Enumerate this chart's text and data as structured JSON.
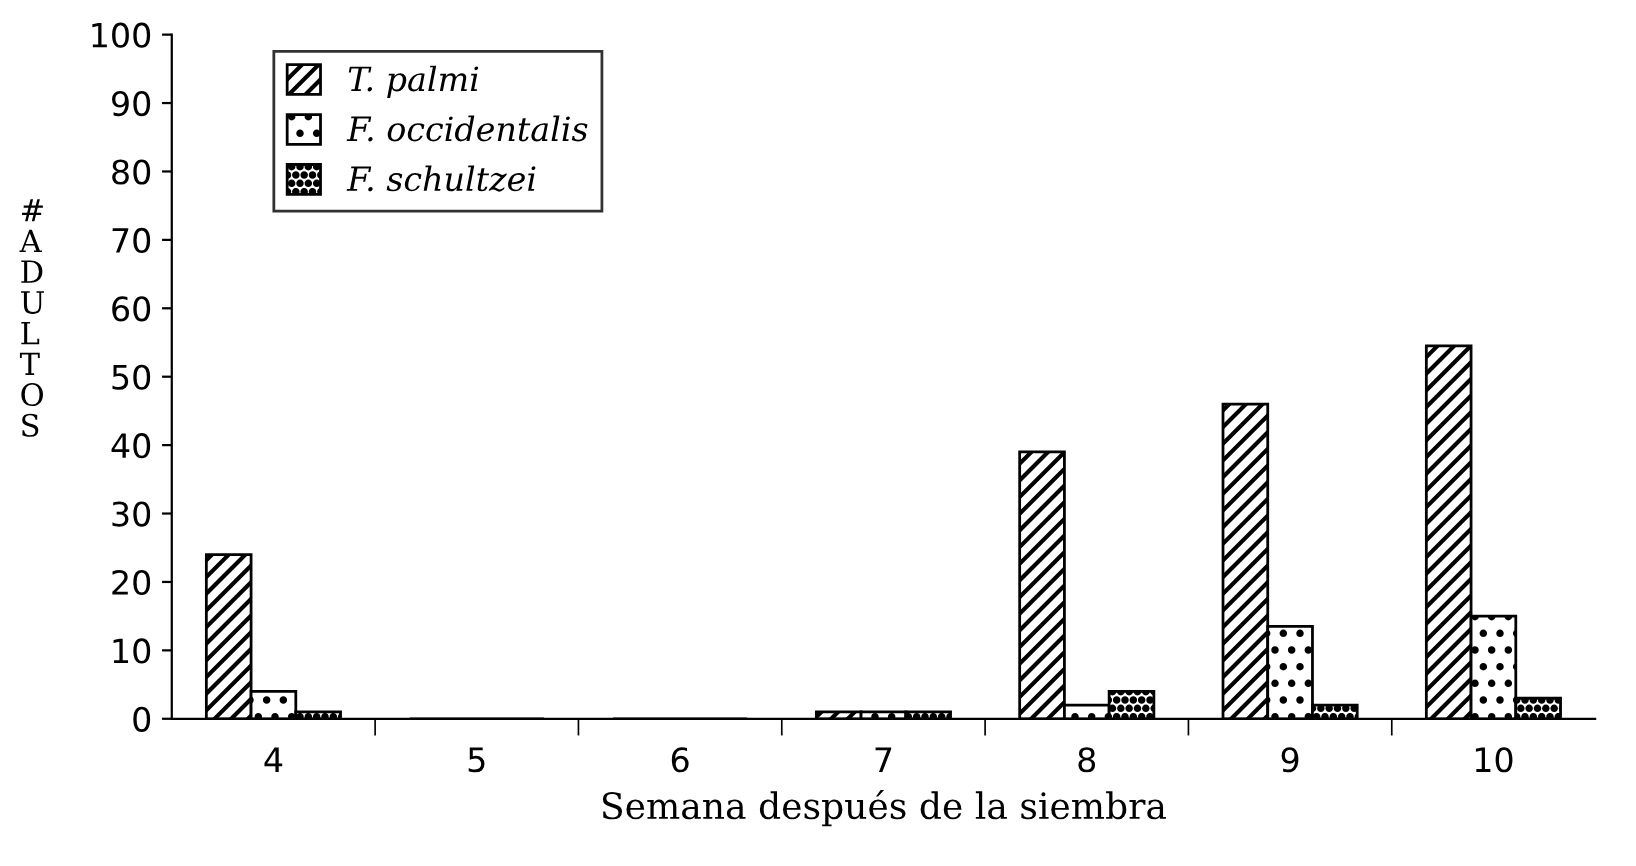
{
  "chart_data": {
    "type": "bar",
    "xlabel": "Semana después de la siembra",
    "ylabel": "# A D U L T O S",
    "categories": [
      "4",
      "5",
      "6",
      "7",
      "8",
      "9",
      "10"
    ],
    "series": [
      {
        "name": "T. palmi",
        "color": "#000000",
        "values": [
          24,
          0,
          0,
          1,
          39,
          46,
          54.5
        ]
      },
      {
        "name": "F. occidentalis",
        "color": "#000000",
        "values": [
          4,
          0,
          0,
          1,
          2,
          13.5,
          15
        ]
      },
      {
        "name": "F. schultzei",
        "color": "#000000",
        "values": [
          1,
          0,
          0,
          1,
          4,
          2,
          3
        ]
      }
    ],
    "ylim": [
      0,
      100
    ],
    "yticks": [
      0,
      10,
      20,
      30,
      40,
      50,
      60,
      70,
      80,
      90,
      100
    ],
    "grid": false,
    "legend": "top left"
  }
}
